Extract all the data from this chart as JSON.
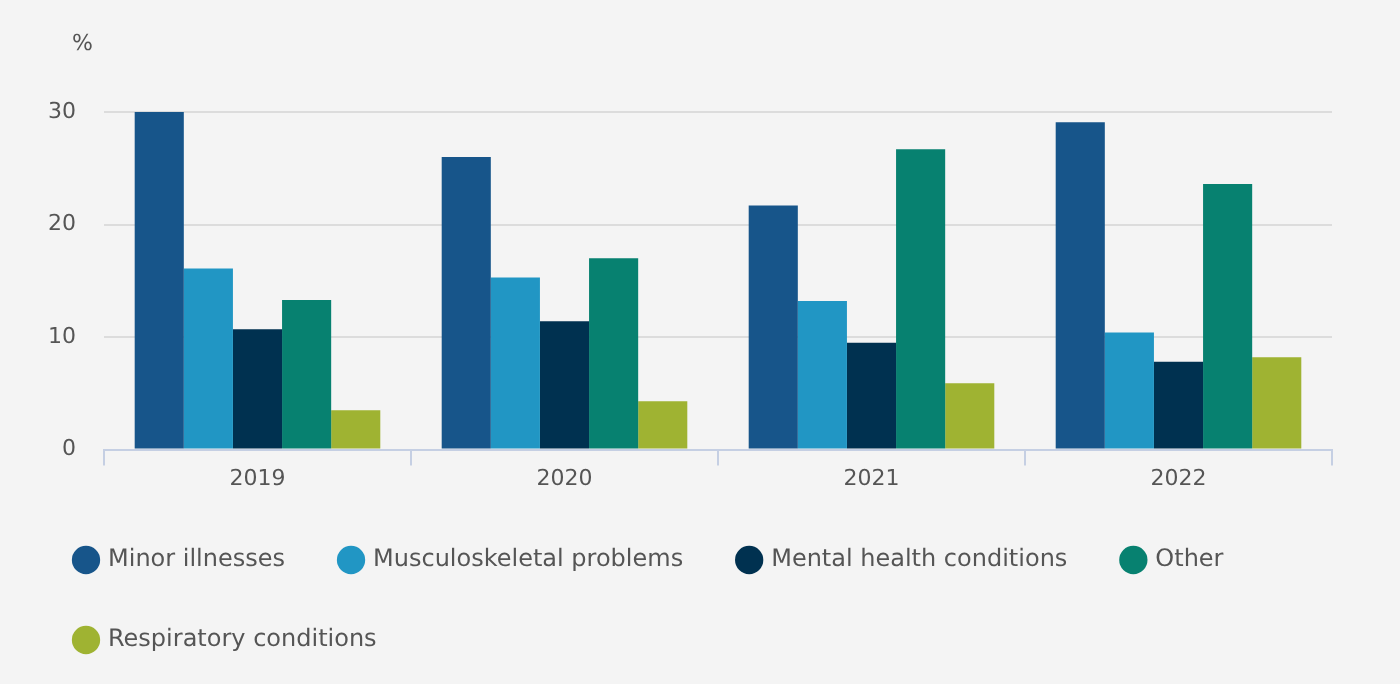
{
  "chart_data": {
    "type": "bar",
    "ylabel": "%",
    "categories": [
      "2019",
      "2020",
      "2021",
      "2022"
    ],
    "series": [
      {
        "name": "Minor illnesses",
        "color": "#17558a",
        "values": [
          30.0,
          26.0,
          21.7,
          29.1
        ]
      },
      {
        "name": "Musculoskeletal problems",
        "color": "#2196c4",
        "values": [
          16.1,
          15.3,
          13.2,
          10.4
        ]
      },
      {
        "name": "Mental health conditions",
        "color": "#003150",
        "values": [
          10.7,
          11.4,
          9.5,
          7.8
        ]
      },
      {
        "name": "Other",
        "color": "#078170",
        "values": [
          13.3,
          17.0,
          26.7,
          23.6
        ]
      },
      {
        "name": "Respiratory conditions",
        "color": "#9fb332",
        "values": [
          3.5,
          4.3,
          5.9,
          8.2
        ]
      }
    ],
    "ylim": [
      0,
      30
    ],
    "yticks": [
      0,
      10,
      20,
      30
    ],
    "grid": "y",
    "legend": "bottom"
  }
}
